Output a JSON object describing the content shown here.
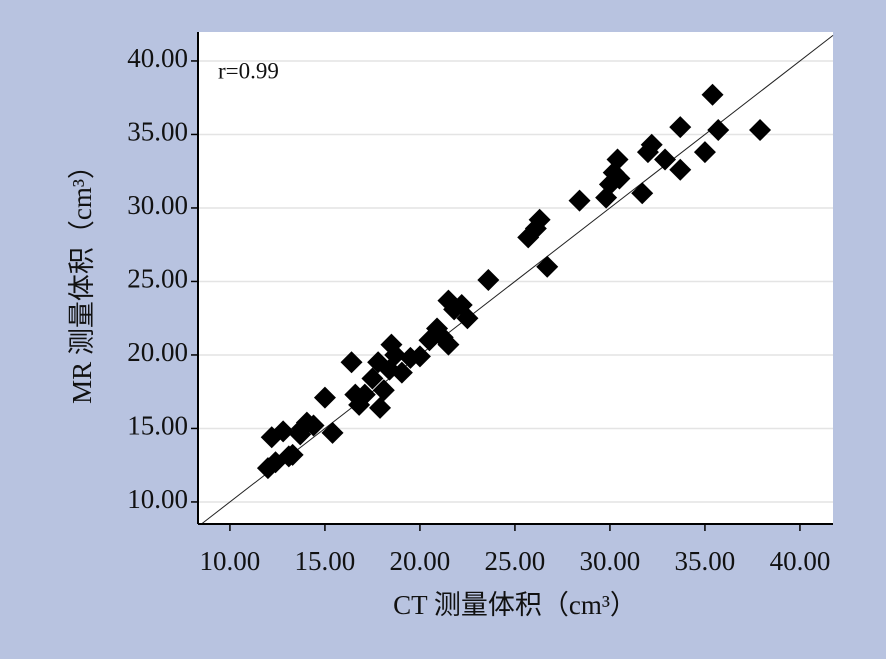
{
  "chart_data": {
    "type": "scatter",
    "annotation": "r=0.99",
    "x_label": "CT 测量体积（cm³）",
    "y_label": "MR 测量体积（cm³）",
    "x": [
      12.0,
      12.4,
      12.2,
      12.8,
      13.1,
      13.3,
      13.7,
      14.05,
      14.4,
      13.8,
      15.0,
      15.4,
      16.4,
      16.6,
      16.8,
      17.1,
      17.5,
      17.8,
      17.9,
      18.1,
      18.4,
      18.5,
      18.7,
      19.05,
      19.5,
      20.0,
      20.5,
      20.9,
      21.2,
      21.5,
      21.5,
      21.8,
      22.2,
      22.5,
      23.6,
      25.7,
      26.1,
      26.3,
      26.7,
      28.4,
      29.8,
      30.0,
      30.2,
      30.4,
      30.5,
      31.7,
      32.0,
      32.2,
      32.9,
      33.7,
      33.7,
      35.0,
      35.4,
      35.7,
      37.9
    ],
    "values": [
      12.3,
      12.7,
      14.4,
      14.8,
      13.1,
      13.2,
      14.6,
      15.4,
      15.2,
      15.0,
      17.1,
      14.7,
      19.5,
      17.3,
      16.6,
      17.3,
      18.4,
      19.5,
      16.4,
      17.6,
      19.0,
      20.7,
      20.0,
      18.8,
      19.8,
      19.9,
      21.0,
      21.8,
      21.2,
      20.7,
      23.7,
      23.1,
      23.4,
      22.5,
      25.1,
      28.0,
      28.6,
      29.2,
      26.0,
      30.5,
      30.7,
      31.6,
      32.4,
      33.3,
      32.0,
      31.0,
      33.8,
      34.3,
      33.3,
      32.6,
      35.5,
      33.8,
      37.7,
      35.3,
      35.3
    ],
    "color": "#000000",
    "xlim": [
      8.32,
      41.74
    ],
    "ylim": [
      8.5,
      41.97
    ],
    "xticks": [
      {
        "value": 10,
        "label": "10.00"
      },
      {
        "value": 15,
        "label": "15.00"
      },
      {
        "value": 20,
        "label": "20.00"
      },
      {
        "value": 25,
        "label": "25.00"
      },
      {
        "value": 30,
        "label": "30.00"
      },
      {
        "value": 35,
        "label": "35.00"
      },
      {
        "value": 40,
        "label": "40.00"
      }
    ],
    "yticks": [
      {
        "value": 10,
        "label": "10.00"
      },
      {
        "value": 15,
        "label": "15.00"
      },
      {
        "value": 20,
        "label": "20.00"
      },
      {
        "value": 25,
        "label": "25.00"
      },
      {
        "value": 30,
        "label": "30.00"
      },
      {
        "value": 35,
        "label": "35.00"
      },
      {
        "value": 40,
        "label": "40.00"
      }
    ],
    "grid": "y",
    "identity_line": true
  }
}
